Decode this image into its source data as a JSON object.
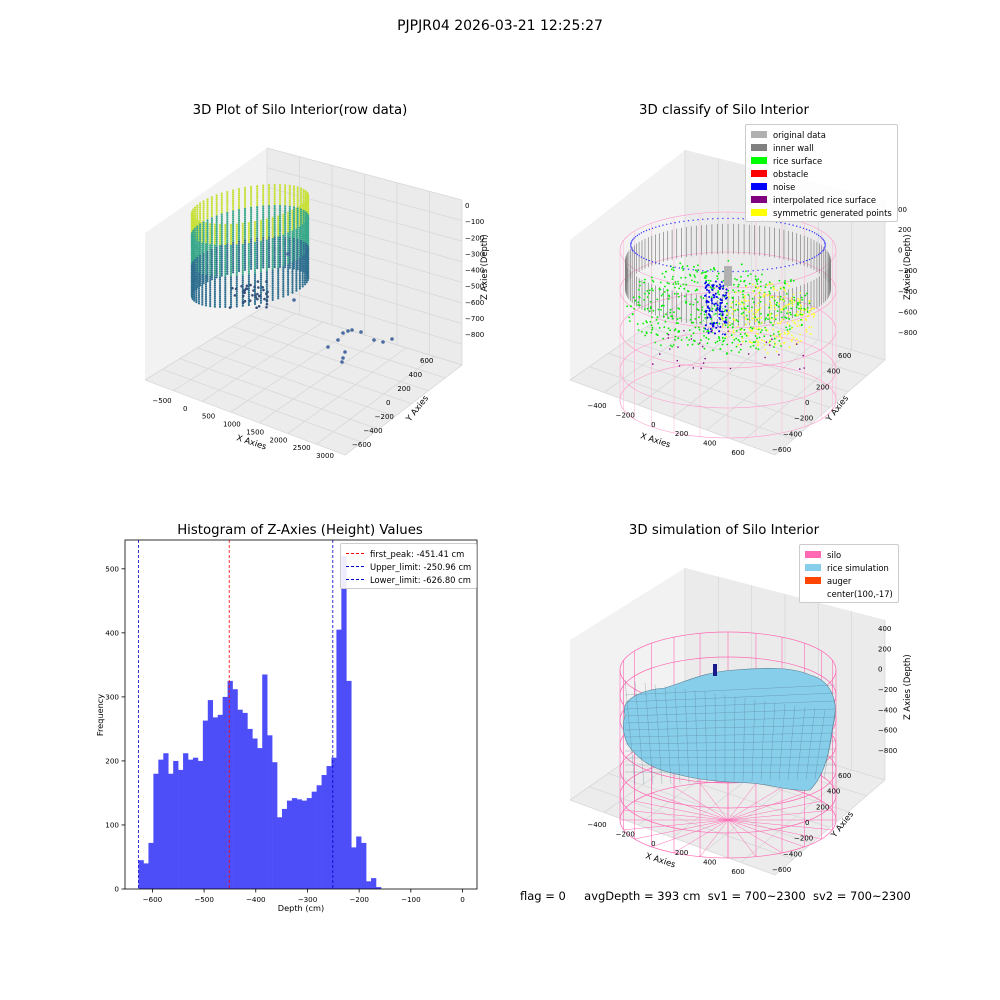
{
  "suptitle": "PJPJR04 2026-03-21 12:25:27",
  "footer": {
    "flag": "flag = 0",
    "avgDepth": "avgDepth = 393 cm",
    "sv1": "sv1 = 700~2300",
    "sv2": "sv2 = 700~2300"
  },
  "colors": {
    "hist_bar": "#4e4ef8",
    "first_peak": "#ff0000",
    "limits": "#0000cc",
    "silo": "#ff69b4",
    "rice": "#87ceeb",
    "auger": "#ff4500",
    "rice_surface": "#00ff00",
    "noise": "#0000ff",
    "inner_wall": "#808080",
    "symmetric": "#ffff00",
    "interpolated": "#800080"
  },
  "chart_data": [
    {
      "type": "scatter",
      "title": "3D Plot of Silo Interior(row data)",
      "xlabel": "X Axies",
      "ylabel": "Y Axies",
      "zlabel": "Z Axies (Depth)",
      "x_ticks": [
        "−500",
        "0",
        "500",
        "1000",
        "1500",
        "2000",
        "2500",
        "3000"
      ],
      "y_ticks": [
        "600",
        "400",
        "200",
        "0",
        "−200",
        "−400",
        "−600"
      ],
      "z_ticks": [
        "0",
        "−100",
        "−200",
        "−300",
        "−400",
        "−500",
        "−600",
        "−700",
        "−800"
      ]
    },
    {
      "type": "scatter",
      "title": "3D classify of Silo Interior",
      "xlabel": "X Axies",
      "ylabel": "Y Axies",
      "zlabel": "Z Axies (Depth)",
      "x_ticks": [
        "−400",
        "−200",
        "0",
        "200",
        "400",
        "600"
      ],
      "y_ticks": [
        "600",
        "400",
        "200",
        "0",
        "−200",
        "−400",
        "−600"
      ],
      "z_ticks": [
        "200",
        "0",
        "−200",
        "−400",
        "−600",
        "−800"
      ],
      "z_top_partial": "00",
      "legend": [
        {
          "label": "original data",
          "color": "#b0b0b0"
        },
        {
          "label": "inner wall",
          "color": "#808080"
        },
        {
          "label": "rice surface",
          "color": "#00ff00"
        },
        {
          "label": "obstacle",
          "color": "#ff0000"
        },
        {
          "label": "noise",
          "color": "#0000ff"
        },
        {
          "label": "interpolated rice surface",
          "color": "#800080"
        },
        {
          "label": "symmetric generated points",
          "color": "#ffff00"
        }
      ]
    },
    {
      "type": "bar",
      "title": "Histogram of Z-Axies (Height) Values",
      "xlabel": "Depth (cm)",
      "ylabel": "Frequency",
      "xlim": [
        -653,
        28
      ],
      "ylim": [
        0,
        545
      ],
      "x_ticks": [
        -600,
        -500,
        -400,
        -300,
        -200,
        -100,
        0
      ],
      "y_ticks": [
        0,
        100,
        200,
        300,
        400,
        500
      ],
      "bin_start": -626.8,
      "bin_width": 9.57,
      "values": [
        45,
        40,
        72,
        180,
        202,
        212,
        180,
        200,
        186,
        212,
        202,
        205,
        200,
        263,
        295,
        268,
        272,
        300,
        325,
        312,
        280,
        275,
        250,
        235,
        220,
        335,
        240,
        198,
        112,
        125,
        138,
        142,
        140,
        138,
        142,
        152,
        162,
        178,
        192,
        205,
        405,
        520,
        325,
        65,
        82,
        72,
        12,
        17,
        3
      ],
      "vlines": [
        {
          "label": "first_peak: -451.41 cm",
          "x": -451.41,
          "color": "#ff0000"
        },
        {
          "label": "Upper_limit: -250.96 cm",
          "x": -250.96,
          "color": "#0000cc"
        },
        {
          "label": "Lower_limit: -626.80 cm",
          "x": -626.8,
          "color": "#0000cc"
        }
      ]
    },
    {
      "type": "area",
      "title": "3D simulation of Silo Interior",
      "xlabel": "X Axies",
      "ylabel": "Y Axies",
      "zlabel": "Z Axies (Depth)",
      "x_ticks": [
        "−400",
        "−200",
        "0",
        "200",
        "400",
        "600"
      ],
      "y_ticks": [
        "600",
        "400",
        "200",
        "0",
        "−200",
        "−400",
        "−600"
      ],
      "z_ticks": [
        "400",
        "200",
        "0",
        "−200",
        "−400",
        "−600",
        "−800"
      ],
      "legend": [
        {
          "label": "silo",
          "color": "#ff69b4"
        },
        {
          "label": "rice simulation",
          "color": "#87ceeb"
        },
        {
          "label": "auger",
          "color": "#ff4500"
        },
        {
          "label": "center(100,-17)",
          "color": ""
        }
      ]
    }
  ]
}
